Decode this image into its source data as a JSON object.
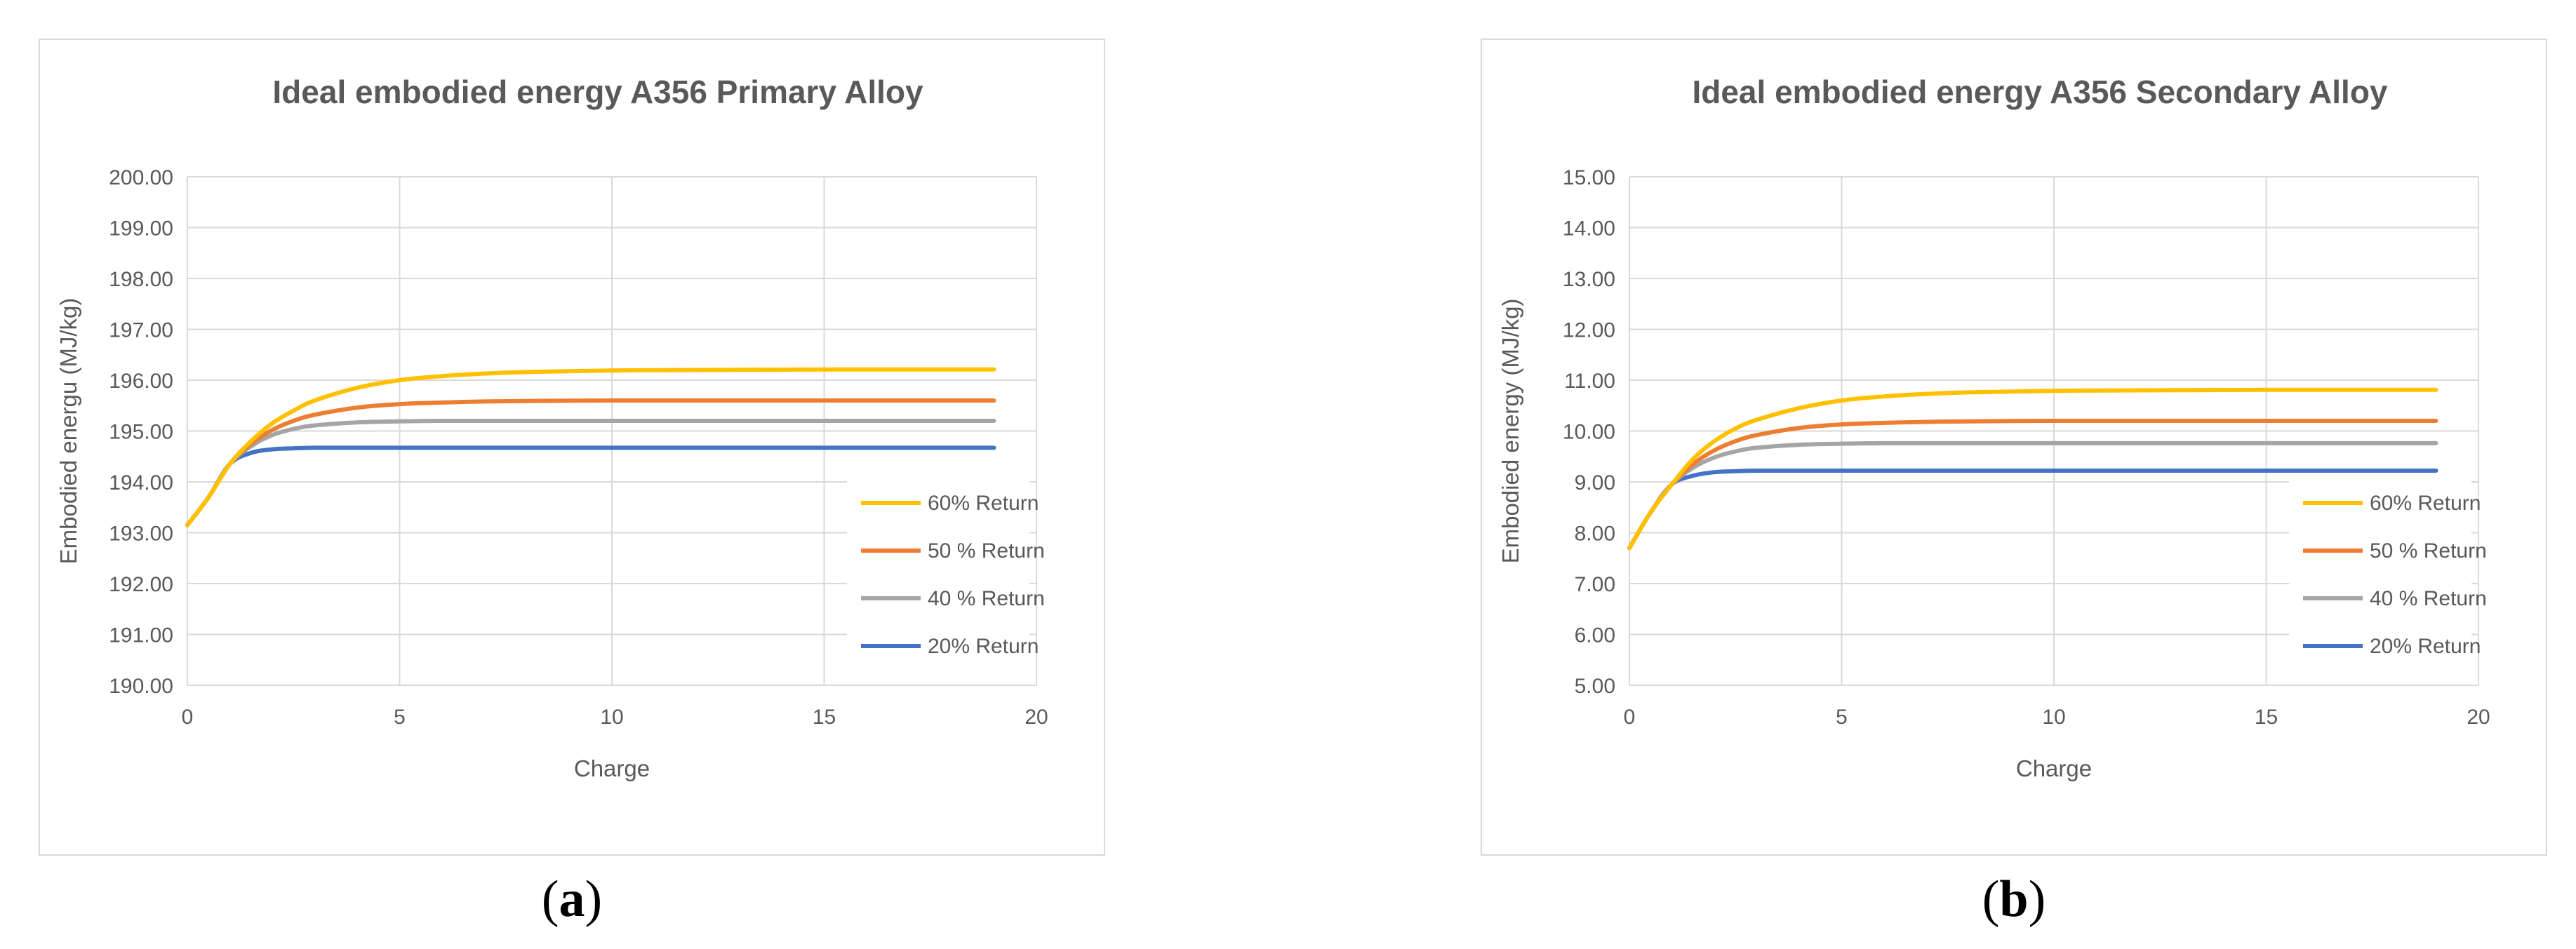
{
  "colors": {
    "s60": "#FFC000",
    "s50": "#ED7D31",
    "s40": "#A5A5A5",
    "s20": "#4472C4",
    "grid": "#d9d9d9",
    "text": "#595959"
  },
  "captions": {
    "a": "a",
    "b": "b"
  },
  "chart_data": [
    {
      "type": "line",
      "title": "Ideal embodied energy A356 Primary Alloy",
      "xlabel": "Charge",
      "ylabel": "Embodied energu (MJ/kg)",
      "xlim": [
        0,
        20
      ],
      "ylim": [
        190,
        200
      ],
      "xticks": [
        0,
        5,
        10,
        15,
        20
      ],
      "yticks": [
        190,
        191,
        192,
        193,
        194,
        195,
        196,
        197,
        198,
        199,
        200
      ],
      "ytick_decimals": 2,
      "grid": true,
      "legend_position": "right",
      "x": [
        0,
        0.5,
        1,
        1.5,
        2,
        2.5,
        3,
        4,
        5,
        6,
        7,
        8,
        10,
        12,
        15,
        19
      ],
      "series": [
        {
          "name": "60% Return",
          "color_key": "s60",
          "values": [
            193.15,
            193.7,
            194.35,
            194.8,
            195.15,
            195.4,
            195.6,
            195.85,
            196.0,
            196.08,
            196.13,
            196.16,
            196.19,
            196.2,
            196.21,
            196.21
          ]
        },
        {
          "name": "50 % Return",
          "color_key": "s50",
          "values": [
            193.15,
            193.7,
            194.35,
            194.75,
            195.02,
            195.2,
            195.32,
            195.46,
            195.53,
            195.56,
            195.58,
            195.59,
            195.6,
            195.6,
            195.6,
            195.6
          ]
        },
        {
          "name": "40 % Return",
          "color_key": "s40",
          "values": [
            193.15,
            193.7,
            194.35,
            194.7,
            194.92,
            195.04,
            195.11,
            195.17,
            195.19,
            195.2,
            195.2,
            195.2,
            195.2,
            195.2,
            195.2,
            195.2
          ]
        },
        {
          "name": "20% Return",
          "color_key": "s20",
          "values": [
            193.15,
            193.7,
            194.35,
            194.57,
            194.64,
            194.66,
            194.67,
            194.67,
            194.67,
            194.67,
            194.67,
            194.67,
            194.67,
            194.67,
            194.67,
            194.67
          ]
        }
      ]
    },
    {
      "type": "line",
      "title": "Ideal embodied energy A356 Secondary Alloy",
      "xlabel": "Charge",
      "ylabel": "Embodied energy (MJ/kg)",
      "xlim": [
        0,
        20
      ],
      "ylim": [
        5,
        15
      ],
      "xticks": [
        0,
        5,
        10,
        15,
        20
      ],
      "yticks": [
        5,
        6,
        7,
        8,
        9,
        10,
        11,
        12,
        13,
        14,
        15
      ],
      "ytick_decimals": 2,
      "grid": true,
      "legend_position": "right",
      "x": [
        0,
        0.5,
        1,
        1.5,
        2,
        2.5,
        3,
        4,
        5,
        6,
        7,
        8,
        10,
        12,
        15,
        19
      ],
      "series": [
        {
          "name": "60% Return",
          "color_key": "s60",
          "values": [
            7.7,
            8.4,
            8.95,
            9.45,
            9.8,
            10.05,
            10.22,
            10.45,
            10.6,
            10.68,
            10.73,
            10.76,
            10.79,
            10.8,
            10.81,
            10.81
          ]
        },
        {
          "name": "50 % Return",
          "color_key": "s50",
          "values": [
            7.7,
            8.4,
            8.95,
            9.35,
            9.62,
            9.8,
            9.92,
            10.06,
            10.13,
            10.16,
            10.18,
            10.19,
            10.2,
            10.2,
            10.2,
            10.2
          ]
        },
        {
          "name": "40 % Return",
          "color_key": "s40",
          "values": [
            7.7,
            8.4,
            8.95,
            9.28,
            9.48,
            9.6,
            9.67,
            9.73,
            9.75,
            9.76,
            9.76,
            9.76,
            9.76,
            9.76,
            9.76,
            9.76
          ]
        },
        {
          "name": "20% Return",
          "color_key": "s20",
          "values": [
            7.7,
            8.4,
            8.95,
            9.12,
            9.19,
            9.21,
            9.22,
            9.22,
            9.22,
            9.22,
            9.22,
            9.22,
            9.22,
            9.22,
            9.22,
            9.22
          ]
        }
      ]
    }
  ]
}
